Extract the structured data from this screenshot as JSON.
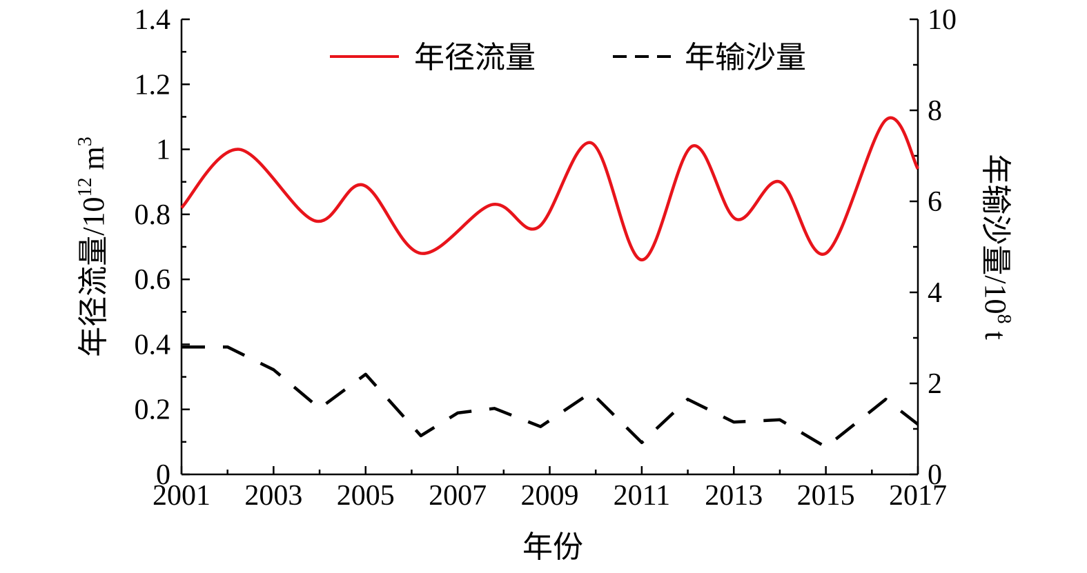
{
  "chart_data": {
    "type": "line",
    "xlabel": "年份",
    "ylabel_left": {
      "text": "年径流量/10",
      "sup": "12",
      "unit": " m",
      "unit_sup": "3"
    },
    "ylabel_right": {
      "text": "年输沙量/10",
      "sup": "8",
      "unit": " t"
    },
    "x_ticks": [
      "2001",
      "2003",
      "2005",
      "2007",
      "2009",
      "2011",
      "2013",
      "2015",
      "2017"
    ],
    "xlim": [
      2001,
      2017
    ],
    "ylim_left": [
      0,
      1.4
    ],
    "ylim_right": [
      0,
      10
    ],
    "y_ticks_left": [
      "0",
      "0.2",
      "0.4",
      "0.6",
      "0.8",
      "1",
      "1.2",
      "1.4"
    ],
    "y_ticks_right": [
      "0",
      "2",
      "4",
      "6",
      "8",
      "10"
    ],
    "legend_position": "top-center",
    "series": [
      {
        "name": "年径流量",
        "axis": "left",
        "color": "#e8141b",
        "style": "solid-smooth",
        "x": [
          2001,
          2002.25,
          2003.9,
          2004.95,
          2006.2,
          2007.75,
          2008.75,
          2009.9,
          2011,
          2012.1,
          2013.05,
          2014,
          2015,
          2016.3,
          2017
        ],
        "values": [
          0.82,
          1.0,
          0.78,
          0.89,
          0.68,
          0.83,
          0.76,
          1.02,
          0.66,
          1.01,
          0.785,
          0.9,
          0.68,
          1.09,
          0.94
        ]
      },
      {
        "name": "年输沙量",
        "axis": "right",
        "color": "#000000",
        "style": "dashed",
        "x": [
          2001,
          2002,
          2003,
          2004,
          2005,
          2006.2,
          2007,
          2007.8,
          2008.8,
          2009.9,
          2011,
          2012,
          2013,
          2014,
          2015,
          2016.3,
          2017
        ],
        "values": [
          2.8,
          2.8,
          2.3,
          1.45,
          2.2,
          0.85,
          1.35,
          1.45,
          1.05,
          1.8,
          0.7,
          1.65,
          1.15,
          1.2,
          0.6,
          1.65,
          1.1
        ]
      }
    ]
  }
}
